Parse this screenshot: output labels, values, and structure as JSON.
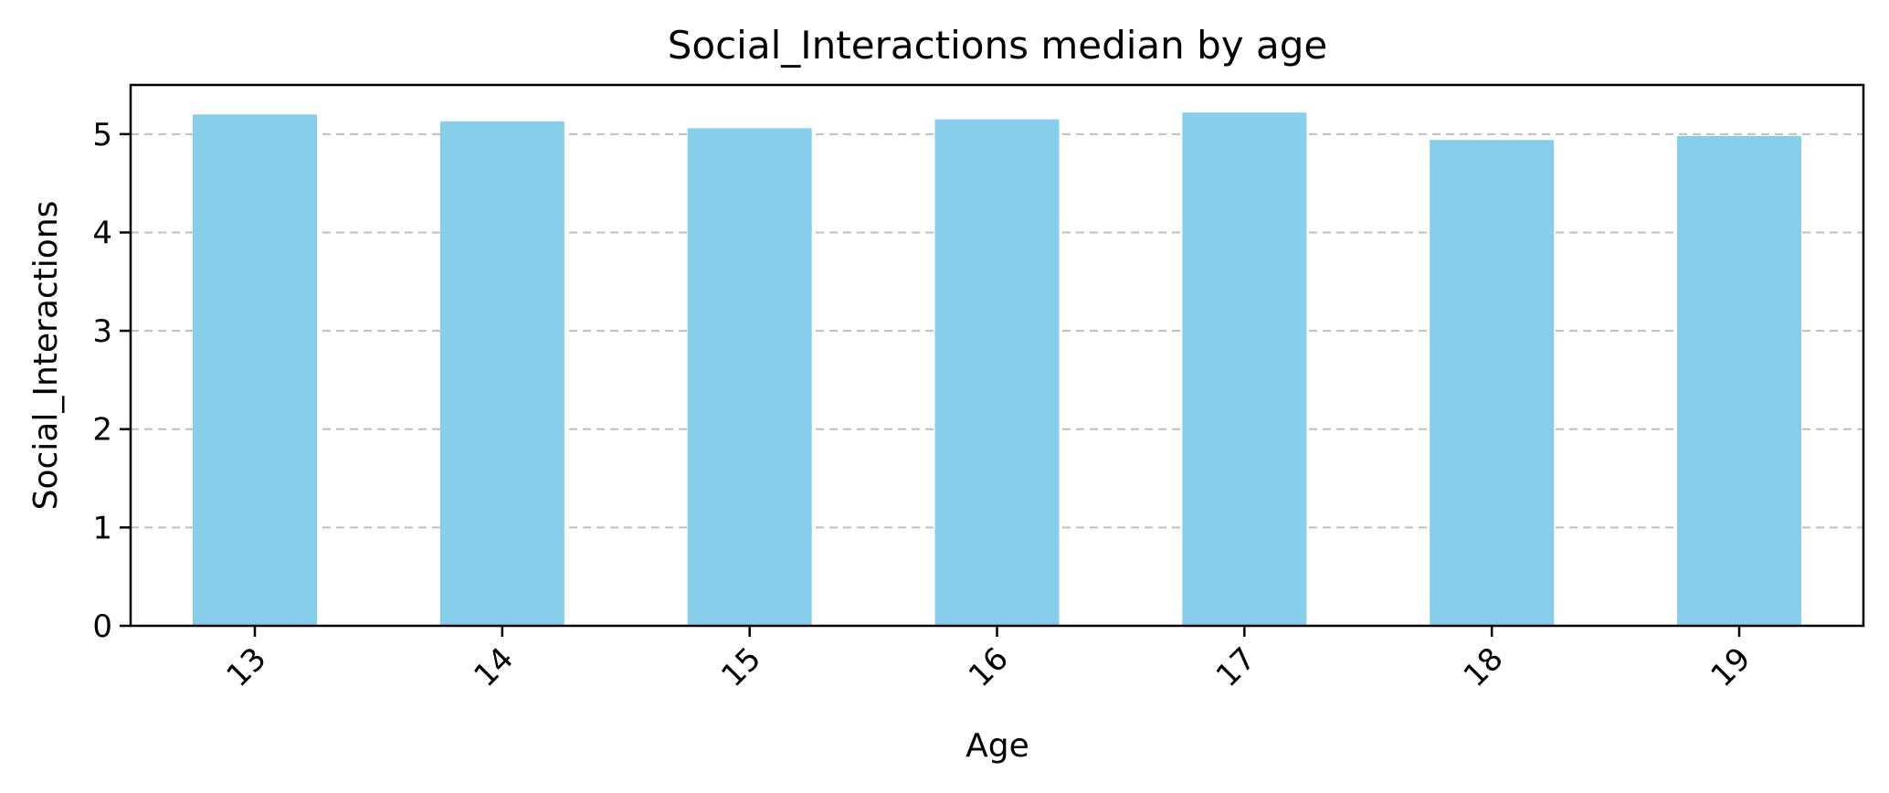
{
  "chart_data": {
    "type": "bar",
    "title": "Social_Interactions median by age",
    "xlabel": "Age",
    "ylabel": "Social_Interactions",
    "categories": [
      "13",
      "14",
      "15",
      "16",
      "17",
      "18",
      "19"
    ],
    "values": [
      5.2,
      5.13,
      5.06,
      5.15,
      5.22,
      4.94,
      4.98
    ],
    "ylim": [
      0,
      5.5
    ],
    "yticks": [
      "0",
      "1",
      "2",
      "3",
      "4",
      "5"
    ],
    "bar_color": "#87ceeb",
    "grid": "y-dashed",
    "x_tick_rotation": "45deg"
  }
}
